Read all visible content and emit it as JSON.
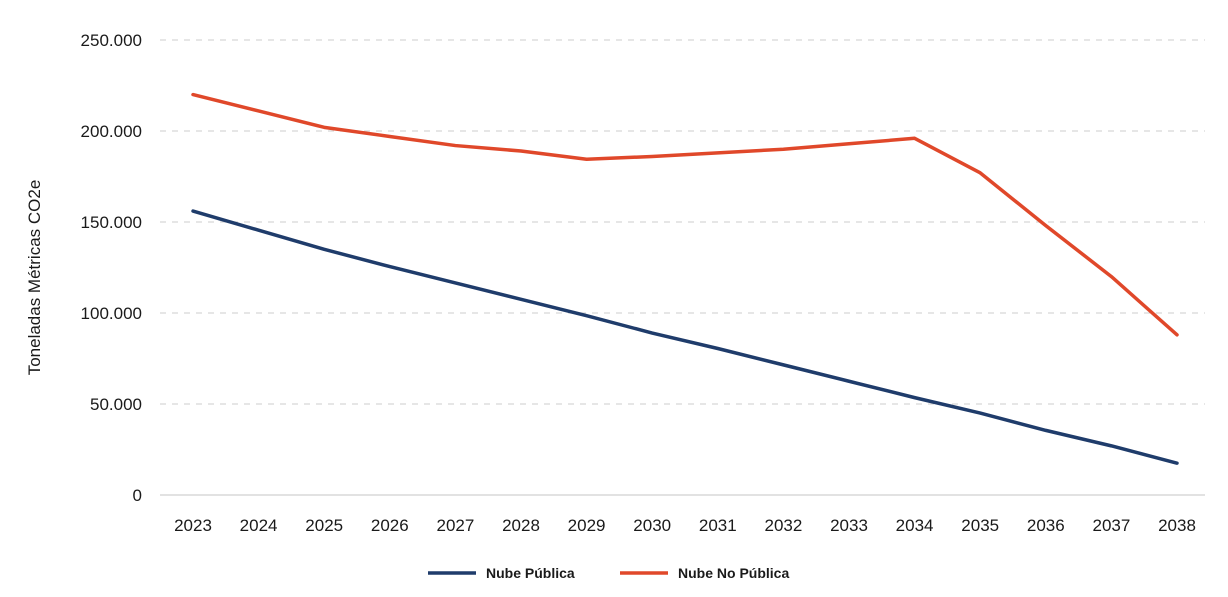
{
  "chart_data": {
    "type": "line",
    "title": "",
    "xlabel": "",
    "ylabel": "Toneladas Métricas CO2e",
    "categories": [
      "2023",
      "2024",
      "2025",
      "2026",
      "2027",
      "2028",
      "2029",
      "2030",
      "2031",
      "2032",
      "2033",
      "2034",
      "2035",
      "2036",
      "2037",
      "2038"
    ],
    "ylim": [
      0,
      250000
    ],
    "yticks": [
      0,
      50000,
      100000,
      150000,
      200000,
      250000
    ],
    "ytick_labels": [
      "0",
      "50.000",
      "100.000",
      "150.000",
      "200.000",
      "250.000"
    ],
    "grid": "horizontal dashed",
    "legend_position": "bottom",
    "series": [
      {
        "name": "Nube Pública",
        "color": "#1f3c6b",
        "values": [
          156000,
          145500,
          135000,
          125500,
          116500,
          107500,
          98500,
          89000,
          80500,
          71500,
          62500,
          53500,
          45000,
          35500,
          27000,
          17500
        ]
      },
      {
        "name": "Nube No Pública",
        "color": "#e0482a",
        "values": [
          220000,
          211000,
          202000,
          197000,
          192000,
          189000,
          184500,
          186000,
          188000,
          190000,
          193000,
          196000,
          177000,
          148000,
          120000,
          88000
        ]
      }
    ]
  }
}
